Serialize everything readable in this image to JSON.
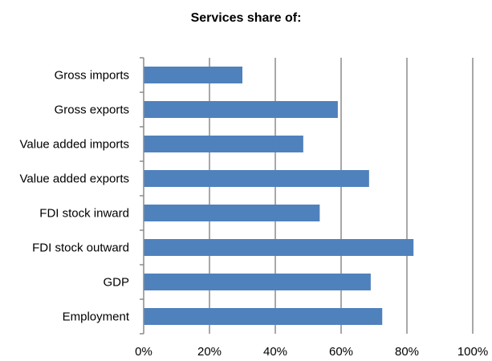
{
  "chart_data": {
    "type": "bar",
    "orientation": "horizontal",
    "title": "Services share of:",
    "categories": [
      "Gross imports",
      "Gross exports",
      "Value added imports",
      "Value added exports",
      "FDI stock inward",
      "FDI stock outward",
      "GDP",
      "Employment"
    ],
    "values": [
      30,
      59,
      48.5,
      68.5,
      53.5,
      82,
      69,
      72.5
    ],
    "xlim": [
      0,
      100
    ],
    "xticks": [
      "0%",
      "20%",
      "40%",
      "60%",
      "80%",
      "100%"
    ],
    "grid": "vertical",
    "bar_color": "#4f81bd"
  }
}
